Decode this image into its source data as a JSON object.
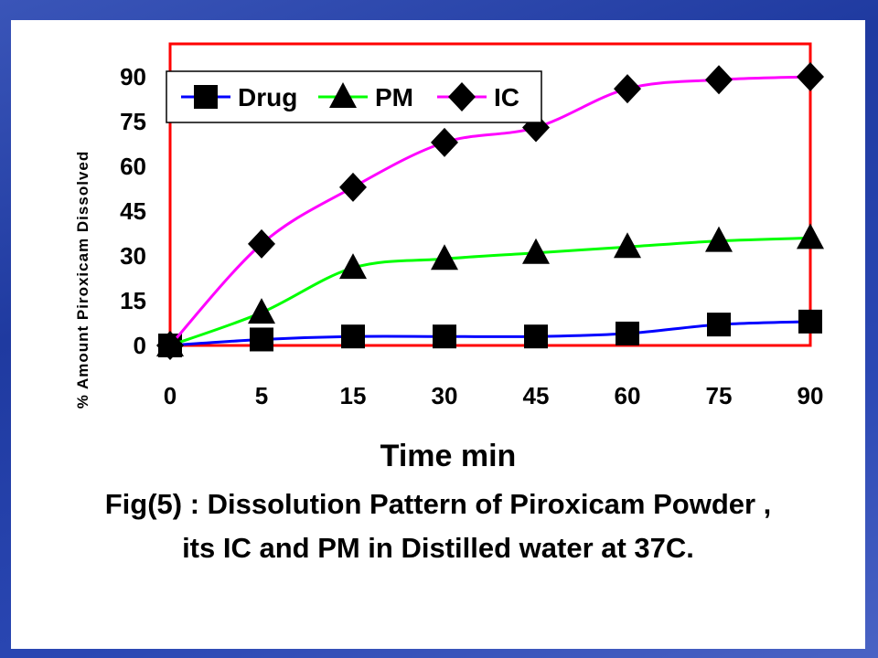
{
  "chart_data": {
    "type": "line",
    "xlabel": "Time min",
    "ylabel": "% Amount Piroxicam Dissolved",
    "categories": [
      "0",
      "5",
      "15",
      "30",
      "45",
      "60",
      "75",
      "90"
    ],
    "yticks": [
      "0",
      "15",
      "30",
      "45",
      "60",
      "75",
      "90"
    ],
    "ylim": [
      0,
      90
    ],
    "grid": false,
    "legend_position": "top-left",
    "series": [
      {
        "name": "Drug",
        "color": "#0000ff",
        "marker": "square",
        "values": [
          0,
          2,
          3,
          3,
          3,
          4,
          7,
          8
        ]
      },
      {
        "name": "PM",
        "color": "#00ff00",
        "marker": "triangle",
        "values": [
          0,
          11,
          26,
          29,
          31,
          33,
          35,
          36
        ]
      },
      {
        "name": "IC",
        "color": "#ff00ff",
        "marker": "diamond",
        "values": [
          0,
          34,
          53,
          68,
          73,
          86,
          89,
          90
        ]
      }
    ]
  },
  "caption": {
    "line1": "Fig(5) : Dissolution Pattern of Piroxicam Powder ,",
    "line2": "its IC and PM in Distilled water at 37C."
  },
  "colors": {
    "axis_frame": "#ff0000",
    "background_slide": "#2a47b3"
  }
}
